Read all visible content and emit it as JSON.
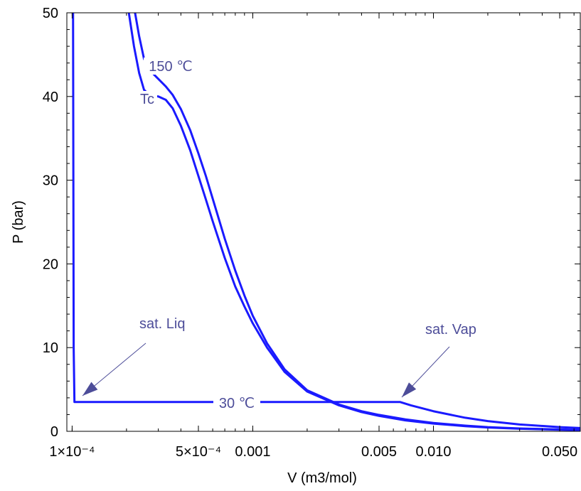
{
  "chart_data": {
    "type": "line",
    "xlabel": "V (m3/mol)",
    "ylabel": "P (bar)",
    "x_scale": "log",
    "xlim": [
      9.35e-05,
      0.065
    ],
    "ylim": [
      0,
      50
    ],
    "x_ticks": [
      {
        "value": 0.0001,
        "label": "1×10⁻⁴"
      },
      {
        "value": 0.0005,
        "label": "5×10⁻⁴"
      },
      {
        "value": 0.001,
        "label": "0.001"
      },
      {
        "value": 0.005,
        "label": "0.005"
      },
      {
        "value": 0.01,
        "label": "0.010"
      },
      {
        "value": 0.05,
        "label": "0.050"
      }
    ],
    "y_ticks": [
      0,
      10,
      20,
      30,
      40,
      50
    ],
    "series_color": "#1a1aff",
    "annotation_color": "#4d4d99",
    "series": [
      {
        "x": [
          0.000223,
          0.000235,
          0.00025,
          0.00027,
          0.0003,
          0.00033,
          0.00036,
          0.0004,
          0.00045,
          0.0005,
          0.00055,
          0.0006,
          0.00065,
          0.0007,
          0.0008,
          0.0009,
          0.001,
          0.0012,
          0.0015,
          0.002,
          0.003,
          0.004,
          0.005,
          0.007,
          0.01,
          0.015,
          0.02,
          0.03,
          0.05,
          0.065
        ],
        "y": [
          50,
          47.2,
          44.5,
          43.1,
          42.1,
          41.2,
          40.2,
          38.5,
          36.0,
          33.2,
          30.5,
          27.8,
          25.3,
          23.0,
          19.2,
          16.2,
          13.8,
          10.5,
          7.4,
          4.9,
          3.2,
          2.4,
          1.96,
          1.42,
          1.0,
          0.68,
          0.5,
          0.34,
          0.22,
          0.17
        ]
      },
      {
        "x": [
          0.000206,
          0.00022,
          0.000235,
          0.00025,
          0.00027,
          0.0003,
          0.00033,
          0.00036,
          0.0004,
          0.00045,
          0.0005,
          0.00055,
          0.0006,
          0.0007,
          0.0008,
          0.0009,
          0.001,
          0.0012,
          0.0015,
          0.002,
          0.003,
          0.004,
          0.005,
          0.007,
          0.01,
          0.015,
          0.02,
          0.03,
          0.05,
          0.065
        ],
        "y": [
          50,
          46.0,
          42.8,
          40.8,
          40.1,
          40.0,
          39.6,
          38.6,
          36.5,
          33.6,
          30.5,
          27.7,
          25.1,
          20.7,
          17.3,
          14.9,
          12.9,
          10.0,
          7.1,
          4.75,
          3.1,
          2.3,
          1.84,
          1.3,
          0.92,
          0.62,
          0.46,
          0.31,
          0.19,
          0.15
        ]
      },
      {
        "x": [
          0.0001012,
          0.000102,
          0.000103,
          0.00011,
          0.0002,
          0.0005,
          0.001,
          0.002,
          0.005,
          0.00655,
          0.0075,
          0.01,
          0.015,
          0.02,
          0.03,
          0.05,
          0.065
        ],
        "y": [
          50,
          10.0,
          3.5,
          3.5,
          3.5,
          3.5,
          3.5,
          3.5,
          3.5,
          3.5,
          3.1,
          2.4,
          1.62,
          1.22,
          0.82,
          0.5,
          0.39
        ]
      }
    ],
    "annotations": {
      "t150": "150 ℃",
      "tc": "Tc",
      "t30": "30 ℃",
      "sat_liq": "sat. Liq",
      "sat_vap": "sat. Vap"
    }
  }
}
